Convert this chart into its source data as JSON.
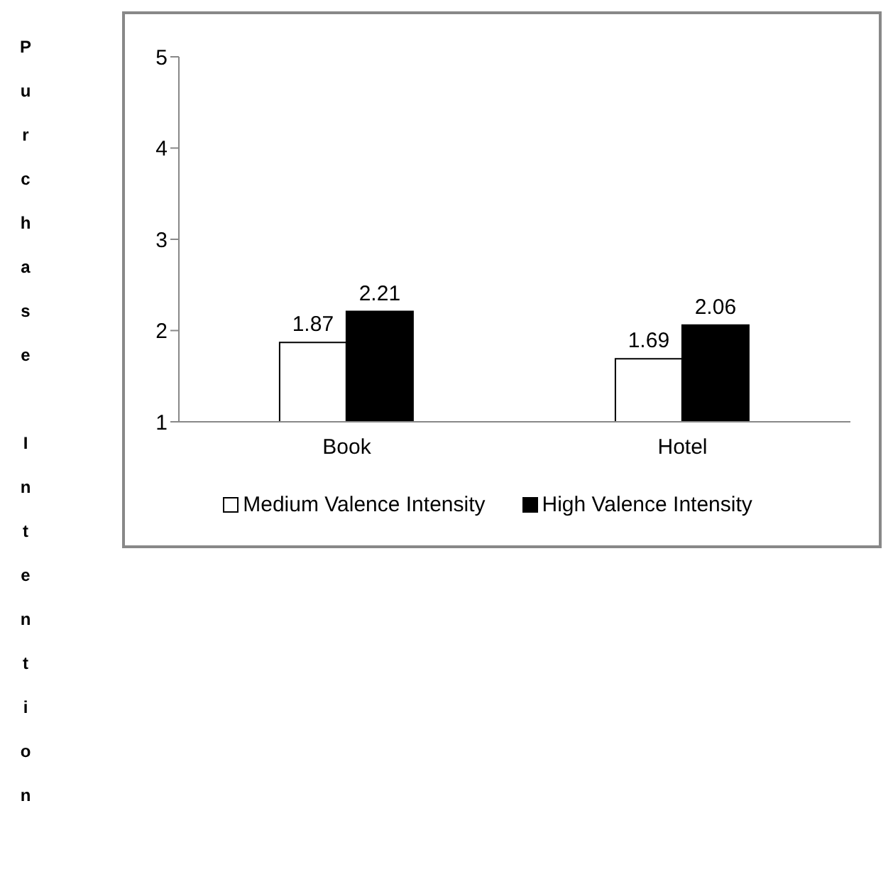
{
  "chart_data": {
    "type": "bar",
    "annotations": [
      "Purchase Intention"
    ],
    "categories": [
      "Book",
      "Hotel"
    ],
    "series": [
      {
        "name": "Medium Valence Intensity",
        "color": "#ffffff",
        "values": [
          1.87,
          1.69
        ]
      },
      {
        "name": "High Valence Intensity",
        "color": "#000000",
        "values": [
          2.21,
          2.06
        ]
      }
    ],
    "ylim": [
      1,
      5
    ],
    "yticks": [
      1,
      2,
      3,
      4,
      5
    ],
    "data_labels": true,
    "legend": "bottom",
    "grid": false
  }
}
